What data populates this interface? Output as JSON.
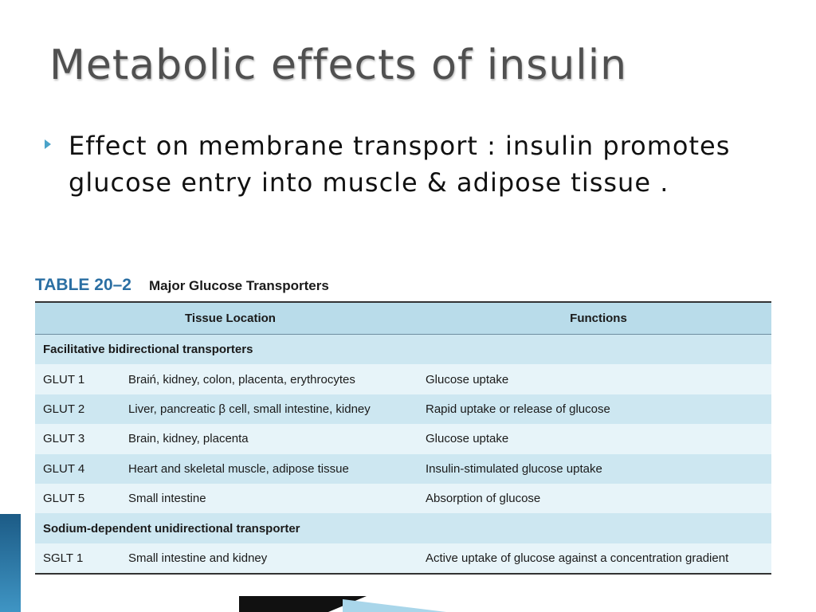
{
  "slide": {
    "title": "Metabolic effects of insulin",
    "bullet": "Effect on membrane transport :  insulin promotes  glucose entry into muscle & adipose tissue ."
  },
  "table": {
    "number": "TABLE 20–2",
    "name": "Major Glucose Transporters",
    "headers": {
      "location": "Tissue Location",
      "functions": "Functions"
    },
    "section1": "Facilitative bidirectional transporters",
    "section2": "Sodium-dependent unidirectional transporter",
    "rows": [
      {
        "code": "GLUT 1",
        "location": "Braiń, kidney, colon, placenta, erythrocytes",
        "function": "Glucose uptake"
      },
      {
        "code": "GLUT 2",
        "location": "Liver, pancreatic β cell, small intestine, kidney",
        "function": "Rapid uptake or release of glucose"
      },
      {
        "code": "GLUT 3",
        "location": "Brain, kidney, placenta",
        "function": "Glucose uptake"
      },
      {
        "code": "GLUT 4",
        "location": "Heart and skeletal muscle, adipose tissue",
        "function": "Insulin-stimulated glucose uptake"
      },
      {
        "code": "GLUT 5",
        "location": "Small intestine",
        "function": "Absorption of glucose"
      },
      {
        "code": "SGLT 1",
        "location": "Small intestine and kidney",
        "function": "Active uptake of glucose against a concentration gradient"
      }
    ]
  },
  "colors": {
    "accent": "#4aa3c9",
    "table_number": "#2b6fa3",
    "header_bg": "#b9dcea",
    "row_light": "#e7f4f9",
    "row_mid": "#cde7f1"
  },
  "icons": {
    "bullet": "triangle-bullet-icon"
  }
}
